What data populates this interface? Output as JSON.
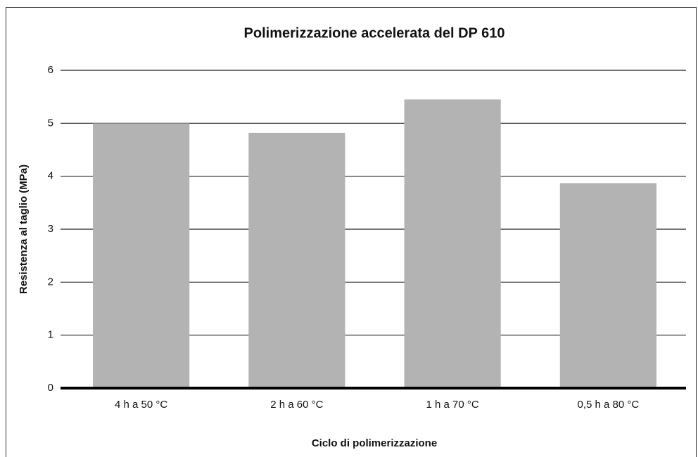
{
  "chart_data": {
    "type": "bar",
    "title": "Polimerizzazione accelerata del DP 610",
    "x_label": "Ciclo di polimerizzazione",
    "y_label": "Resistenza al taglio (MPa)",
    "categories": [
      "4 h a 50 °C",
      "2 h a 60 °C",
      "1 h a 70 °C",
      "0,5 h a 80 °C"
    ],
    "values": [
      5.0,
      4.82,
      5.45,
      3.87
    ],
    "color": "#b3b3b3",
    "ylim": [
      0,
      6
    ],
    "yticks": [
      0,
      1,
      2,
      3,
      4,
      5,
      6
    ],
    "grid": true
  }
}
